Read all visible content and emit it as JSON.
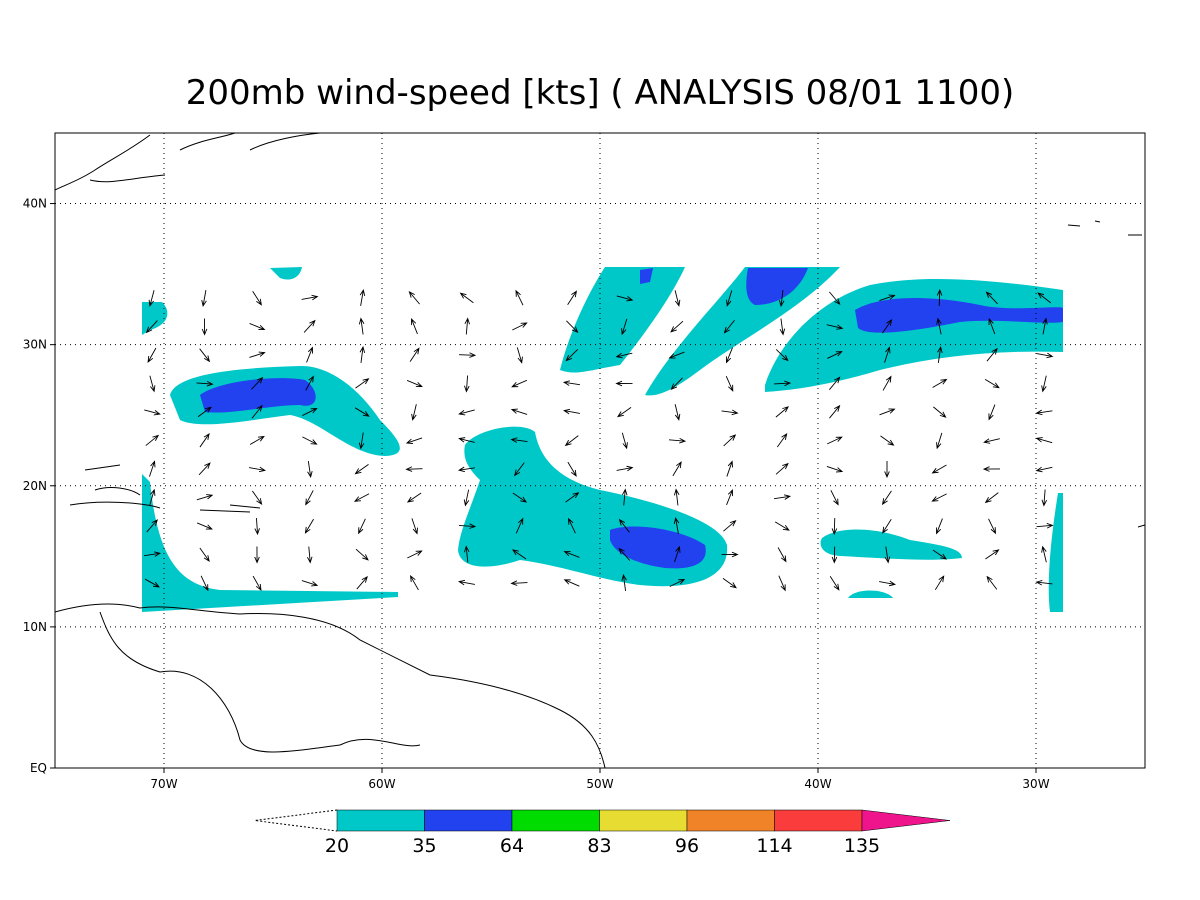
{
  "map": {
    "title": "200mb wind-speed [kts] ( ANALYSIS 08/01 1100)",
    "lon_range": [
      -75,
      -25
    ],
    "lat_range": [
      0,
      45
    ],
    "lon_ticks": [
      {
        "value": -70,
        "label": "70W"
      },
      {
        "value": -60,
        "label": "60W"
      },
      {
        "value": -50,
        "label": "50W"
      },
      {
        "value": -40,
        "label": "40W"
      },
      {
        "value": -30,
        "label": "30W"
      }
    ],
    "lat_ticks": [
      {
        "value": 0,
        "label": "EQ"
      },
      {
        "value": 10,
        "label": "10N"
      },
      {
        "value": 20,
        "label": "20N"
      },
      {
        "value": 30,
        "label": "30N"
      },
      {
        "value": 40,
        "label": "40N"
      }
    ],
    "grid": true,
    "colorbar": {
      "levels": [
        20,
        35,
        64,
        83,
        96,
        114,
        135
      ],
      "colors": [
        "#00c8c8",
        "#2242f0",
        "#00dc00",
        "#e6dc32",
        "#f08228",
        "#fa3c3c",
        "#f0148c"
      ]
    }
  }
}
